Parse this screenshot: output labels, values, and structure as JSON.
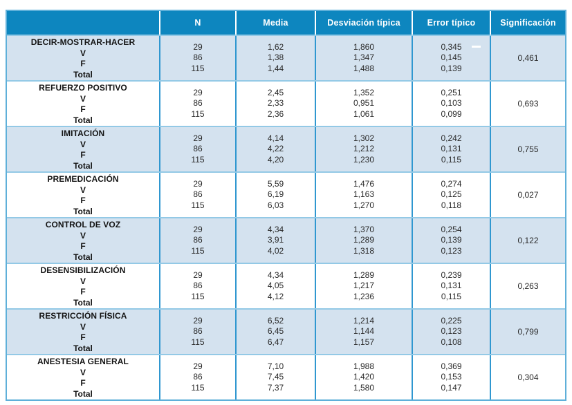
{
  "table": {
    "header": {
      "label_col": "",
      "n": "N",
      "media": "Media",
      "desviacion": "Desviación típica",
      "error": "Error típico",
      "significacion": "Significación"
    },
    "sub_labels": [
      "V",
      "F",
      "Total"
    ],
    "groups": [
      {
        "name": "DECIR-MOSTRAR-HACER",
        "n": [
          "29",
          "86",
          "115"
        ],
        "media": [
          "1,62",
          "1,38",
          "1,44"
        ],
        "desviacion": [
          "1,860",
          "1,347",
          "1,488"
        ],
        "error": [
          "0,345",
          "0,145",
          "0,139"
        ],
        "significacion": "0,461"
      },
      {
        "name": "REFUERZO POSITIVO",
        "n": [
          "29",
          "86",
          "115"
        ],
        "media": [
          "2,45",
          "2,33",
          "2,36"
        ],
        "desviacion": [
          "1,352",
          "0,951",
          "1,061"
        ],
        "error": [
          "0,251",
          "0,103",
          "0,099"
        ],
        "significacion": "0,693"
      },
      {
        "name": "IMITACIÓN",
        "n": [
          "29",
          "86",
          "115"
        ],
        "media": [
          "4,14",
          "4,22",
          "4,20"
        ],
        "desviacion": [
          "1,302",
          "1,212",
          "1,230"
        ],
        "error": [
          "0,242",
          "0,131",
          "0,115"
        ],
        "significacion": "0,755"
      },
      {
        "name": "PREMEDICACIÓN",
        "n": [
          "29",
          "86",
          "115"
        ],
        "media": [
          "5,59",
          "6,19",
          "6,03"
        ],
        "desviacion": [
          "1,476",
          "1,163",
          "1,270"
        ],
        "error": [
          "0,274",
          "0,125",
          "0,118"
        ],
        "significacion": "0,027"
      },
      {
        "name": "CONTROL DE VOZ",
        "n": [
          "29",
          "86",
          "115"
        ],
        "media": [
          "4,34",
          "3,91",
          "4,02"
        ],
        "desviacion": [
          "1,370",
          "1,289",
          "1,318"
        ],
        "error": [
          "0,254",
          "0,139",
          "0,123"
        ],
        "significacion": "0,122"
      },
      {
        "name": "DESENSIBILIZACIÓN",
        "n": [
          "29",
          "86",
          "115"
        ],
        "media": [
          "4,34",
          "4,05",
          "4,12"
        ],
        "desviacion": [
          "1,289",
          "1,217",
          "1,236"
        ],
        "error": [
          "0,239",
          "0,131",
          "0,115"
        ],
        "significacion": "0,263"
      },
      {
        "name": "RESTRICCIÓN FÍSICA",
        "n": [
          "29",
          "86",
          "115"
        ],
        "media": [
          "6,52",
          "6,45",
          "6,47"
        ],
        "desviacion": [
          "1,214",
          "1,144",
          "1,157"
        ],
        "error": [
          "0,225",
          "0,123",
          "0,108"
        ],
        "significacion": "0,799"
      },
      {
        "name": "ANESTESIA GENERAL",
        "n": [
          "29",
          "86",
          "115"
        ],
        "media": [
          "7,10",
          "7,45",
          "7,37"
        ],
        "desviacion": [
          "1,988",
          "1,420",
          "1,580"
        ],
        "error": [
          "0,369",
          "0,153",
          "0,147"
        ],
        "significacion": "0,304"
      }
    ]
  },
  "colors": {
    "header_blue": "#0d86bf",
    "shaded_row": "#d4e2ef",
    "column_divider": "#2f97d0",
    "group_divider": "#93c9e6",
    "outer_border": "#5fb0d9",
    "header_text": "#ffffff",
    "body_text": "#2a2a2a"
  }
}
